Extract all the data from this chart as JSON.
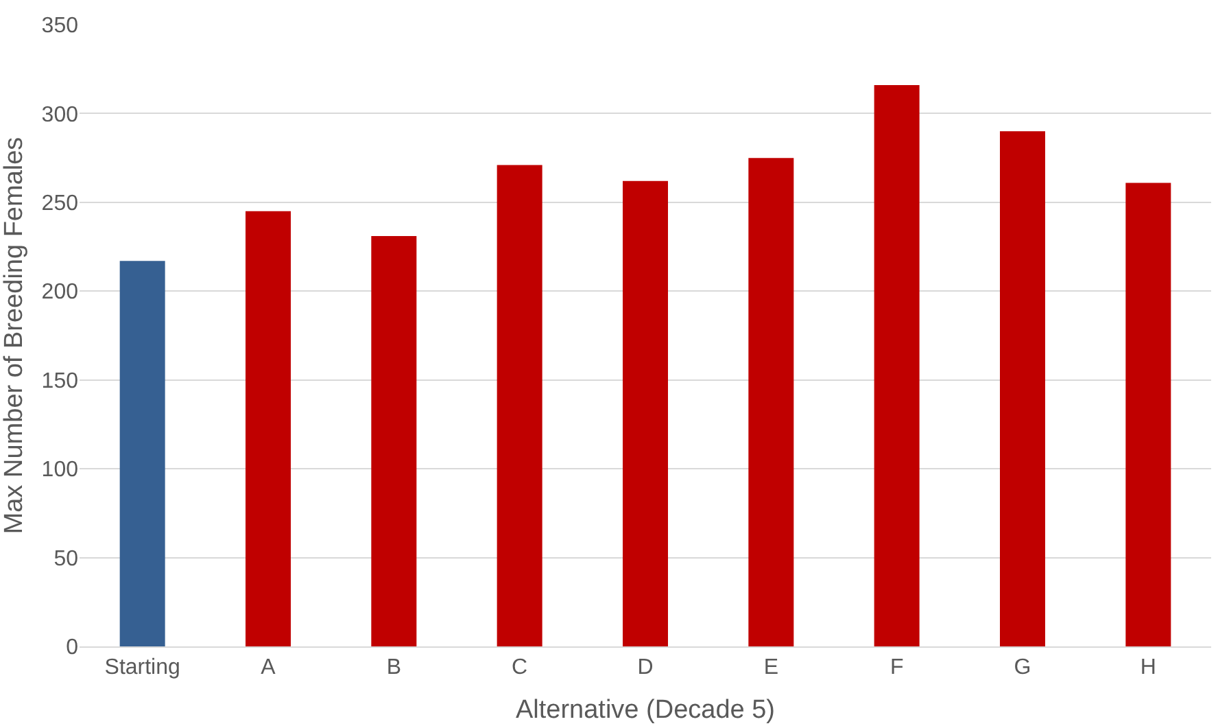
{
  "chart_data": {
    "type": "bar",
    "xlabel": "Alternative (Decade 5)",
    "ylabel": "Max Number of Breeding Females",
    "categories": [
      "Starting",
      "A",
      "B",
      "C",
      "D",
      "E",
      "F",
      "G",
      "H"
    ],
    "values": [
      217,
      245,
      231,
      271,
      262,
      275,
      316,
      290,
      261
    ],
    "colors": [
      "#366092",
      "#c00000",
      "#c00000",
      "#c00000",
      "#c00000",
      "#c00000",
      "#c00000",
      "#c00000",
      "#c00000"
    ],
    "ylim": [
      0,
      350
    ],
    "yticks": [
      0,
      50,
      100,
      150,
      200,
      250,
      300,
      350
    ],
    "grid": "y"
  }
}
